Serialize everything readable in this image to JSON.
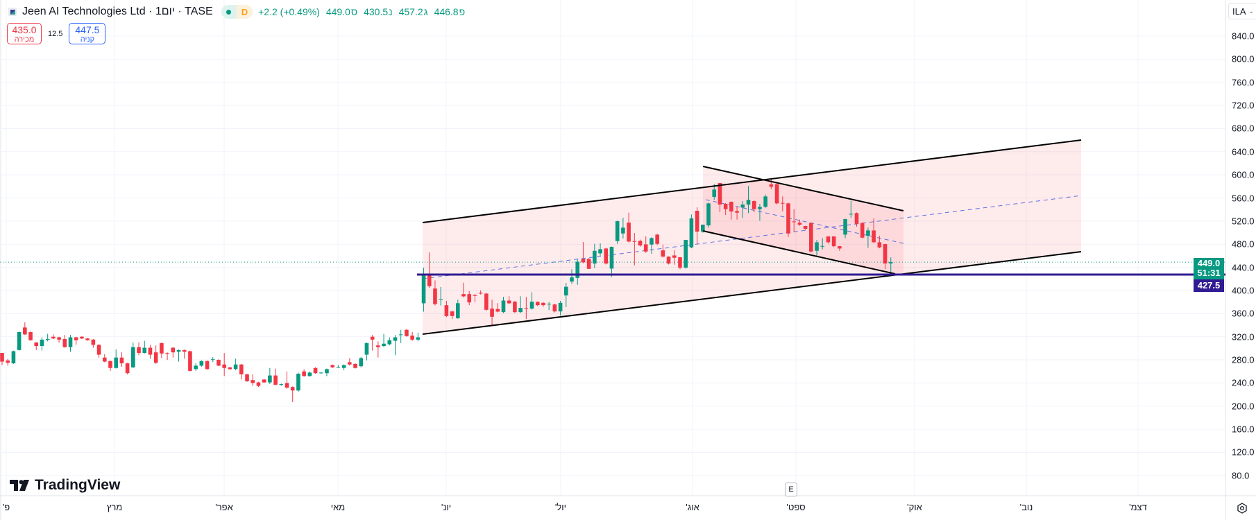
{
  "header": {
    "title": "Jeen AI Technologies Ltd · 1יום · TASE",
    "delay_badge": "D",
    "change": "+2.2 (+0.49%)",
    "ohlc": [
      {
        "label": "ס",
        "value": "449.0"
      },
      {
        "label": "נ",
        "value": "430.5"
      },
      {
        "label": "ג",
        "value": "457.2"
      },
      {
        "label": "פ",
        "value": "446.8"
      }
    ]
  },
  "trade": {
    "sell_price": "435.0",
    "sell_label": "מכירה",
    "spread": "12.5",
    "buy_price": "447.5",
    "buy_label": "קניה"
  },
  "currency": "ILA",
  "price_axis": [
    "840.0",
    "800.0",
    "760.0",
    "720.0",
    "680.0",
    "640.0",
    "600.0",
    "560.0",
    "520.0",
    "480.0",
    "440.0",
    "400.0",
    "360.0",
    "320.0",
    "280.0",
    "240.0",
    "200.0",
    "160.0",
    "120.0",
    "80.0"
  ],
  "time_axis": [
    "'פ",
    "מרץ",
    "'אפר",
    "מאי",
    "'יונ",
    "'יול",
    "'אוג",
    "'ספט",
    "'אוק",
    "'נוב",
    "'דצמ"
  ],
  "last_price": {
    "price": "449.0",
    "countdown": "51:31"
  },
  "horizontal_line": {
    "price": "427.5"
  },
  "logo": "TradingView",
  "e_button": "E",
  "colors": {
    "up": "#089981",
    "down": "#f23645",
    "hline": "#311b92",
    "channel_fill": "rgba(242,54,69,0.1)",
    "midline": "#5c6fe0"
  },
  "chart_data": {
    "type": "candlestick",
    "ylim": [
      80,
      840
    ],
    "candles_ohlc": [
      [
        292,
        292,
        271,
        277
      ],
      [
        279,
        282,
        270,
        275
      ],
      [
        274,
        296,
        273,
        295
      ],
      [
        297,
        329,
        296,
        328
      ],
      [
        336,
        345,
        323,
        324
      ],
      [
        328,
        329,
        313,
        314
      ],
      [
        310,
        311,
        297,
        304
      ],
      [
        304,
        319,
        296,
        315
      ],
      [
        315,
        325,
        312,
        316
      ],
      [
        320,
        324,
        316,
        317
      ],
      [
        319,
        320,
        310,
        315
      ],
      [
        316,
        323,
        301,
        302
      ],
      [
        302,
        323,
        294,
        319
      ],
      [
        319,
        320,
        306,
        314
      ],
      [
        320,
        321,
        316,
        317
      ],
      [
        317,
        318,
        313,
        314
      ],
      [
        315,
        316,
        301,
        306
      ],
      [
        306,
        307,
        284,
        289
      ],
      [
        284,
        290,
        276,
        277
      ],
      [
        278,
        279,
        261,
        266
      ],
      [
        266,
        298,
        265,
        284
      ],
      [
        284,
        293,
        268,
        274
      ],
      [
        274,
        275,
        255,
        257
      ],
      [
        267,
        310,
        266,
        302
      ],
      [
        302,
        310,
        288,
        292
      ],
      [
        292,
        313,
        291,
        301
      ],
      [
        301,
        306,
        282,
        289
      ],
      [
        293,
        305,
        273,
        275
      ],
      [
        309,
        310,
        283,
        291
      ],
      [
        292,
        293,
        280,
        291
      ],
      [
        301,
        302,
        284,
        293
      ],
      [
        294,
        298,
        277,
        297
      ],
      [
        297,
        298,
        282,
        294
      ],
      [
        295,
        296,
        260,
        261
      ],
      [
        264,
        274,
        261,
        270
      ],
      [
        270,
        279,
        268,
        278
      ],
      [
        278,
        279,
        263,
        264
      ],
      [
        280,
        285,
        276,
        281
      ],
      [
        280,
        281,
        269,
        270
      ],
      [
        272,
        292,
        252,
        266
      ],
      [
        267,
        268,
        262,
        264
      ],
      [
        264,
        282,
        262,
        272
      ],
      [
        272,
        273,
        246,
        255
      ],
      [
        255,
        256,
        242,
        243
      ],
      [
        245,
        255,
        235,
        240
      ],
      [
        241,
        242,
        233,
        235
      ],
      [
        246,
        247,
        240,
        241
      ],
      [
        241,
        266,
        238,
        253
      ],
      [
        253,
        265,
        236,
        237
      ],
      [
        237,
        239,
        235,
        238
      ],
      [
        240,
        260,
        230,
        232
      ],
      [
        233,
        234,
        207,
        227
      ],
      [
        227,
        258,
        225,
        256
      ],
      [
        260,
        264,
        251,
        252
      ],
      [
        252,
        260,
        251,
        258
      ],
      [
        266,
        267,
        256,
        257
      ],
      [
        257,
        259,
        256,
        258
      ],
      [
        257,
        265,
        252,
        264
      ],
      [
        271,
        272,
        266,
        267
      ],
      [
        268,
        271,
        266,
        268
      ],
      [
        266,
        272,
        262,
        271
      ],
      [
        276,
        283,
        270,
        272
      ],
      [
        273,
        274,
        265,
        266
      ],
      [
        269,
        285,
        267,
        283
      ],
      [
        289,
        310,
        279,
        309
      ],
      [
        320,
        323,
        296,
        315
      ],
      [
        305,
        312,
        284,
        302
      ],
      [
        304,
        325,
        302,
        308
      ],
      [
        307,
        319,
        305,
        314
      ],
      [
        313,
        323,
        288,
        319
      ],
      [
        323,
        332,
        309,
        324
      ],
      [
        332,
        333,
        320,
        321
      ],
      [
        322,
        328,
        313,
        315
      ],
      [
        315,
        327,
        312,
        319
      ],
      [
        377.8,
        439.4,
        363.4,
        426.6
      ],
      [
        425.8,
        465.8,
        404.6,
        407.4
      ],
      [
        403.4,
        417.4,
        374,
        376.6
      ],
      [
        384.6,
        406,
        374,
        385
      ],
      [
        374.6,
        382,
        354,
        355.8
      ],
      [
        363.8,
        365,
        350.6,
        355.8
      ],
      [
        352,
        384,
        351,
        378
      ],
      [
        393.8,
        413.4,
        388,
        389.8
      ],
      [
        393.8,
        399,
        374.6,
        379.4
      ],
      [
        392,
        394,
        380,
        390.6
      ],
      [
        396,
        400,
        393,
        394.6
      ],
      [
        394.6,
        396,
        365,
        366.6
      ],
      [
        368.6,
        384,
        340.6,
        354.6
      ],
      [
        368,
        378,
        362,
        363.4
      ],
      [
        362.6,
        389,
        361,
        382.6
      ],
      [
        382.6,
        390,
        376,
        377.8
      ],
      [
        380.6,
        382,
        361,
        362.6
      ],
      [
        362.6,
        390,
        361,
        369.8
      ],
      [
        369.8,
        389,
        350.6,
        369.4
      ],
      [
        368.6,
        397,
        367,
        380.6
      ],
      [
        380.2,
        381,
        373,
        374.6
      ],
      [
        378.6,
        380,
        372,
        374.6
      ],
      [
        376,
        380,
        366,
        377
      ],
      [
        375.8,
        377,
        362,
        363.8
      ],
      [
        363.8,
        382,
        356.6,
        378.6
      ],
      [
        391.4,
        413,
        371.4,
        406.4
      ],
      [
        415.4,
        436.6,
        411.4,
        422.6
      ],
      [
        421.8,
        454,
        409.8,
        449.8
      ],
      [
        454.6,
        483.8,
        447,
        448.6
      ],
      [
        454.6,
        456,
        437,
        437.4
      ],
      [
        446.6,
        480.6,
        438.6,
        468.6
      ],
      [
        464.2,
        481.4,
        460,
        471.4
      ],
      [
        472.6,
        474,
        445,
        446.6
      ],
      [
        437.8,
        476,
        423.4,
        475.4
      ],
      [
        485.4,
        521,
        480.6,
        519.8
      ],
      [
        498.6,
        525.8,
        489.8,
        508.6
      ],
      [
        517.4,
        534.6,
        483,
        484.6
      ],
      [
        485.4,
        499.4,
        443.4,
        485
      ],
      [
        485.8,
        488,
        476,
        477.8
      ],
      [
        479.8,
        493.4,
        465,
        467.4
      ],
      [
        479.4,
        492,
        463.4,
        490.6
      ],
      [
        496.6,
        498,
        478,
        480.6
      ],
      [
        469.4,
        479.4,
        457,
        458.6
      ],
      [
        458.6,
        459,
        445,
        446.6
      ],
      [
        460.6,
        469.4,
        444.6,
        456.6
      ],
      [
        457.4,
        458,
        436.6,
        439.4
      ],
      [
        439.4,
        487.4,
        438,
        487.4
      ],
      [
        474.6,
        531.4,
        473,
        524.6
      ],
      [
        537.8,
        543.8,
        480.6,
        501.8
      ],
      [
        501.8,
        514,
        500,
        513.8
      ],
      [
        512.6,
        552,
        508.6,
        550.6
      ],
      [
        561.8,
        584.6,
        556.6,
        574.6
      ],
      [
        585.8,
        586,
        535.4,
        548.6
      ],
      [
        549.8,
        551,
        530.6,
        540.6
      ],
      [
        553.4,
        554,
        522.6,
        536.6
      ],
      [
        537.4,
        544.6,
        522.6,
        534.6
      ],
      [
        543.4,
        554.6,
        525.4,
        548.6
      ],
      [
        548.6,
        580.6,
        533.8,
        556.6
      ],
      [
        554.6,
        556,
        535.4,
        540.6
      ],
      [
        540.6,
        549.8,
        520.6,
        544.6
      ],
      [
        544.6,
        565.8,
        543,
        562.6
      ],
      [
        583.4,
        592.6,
        575.4,
        579.4
      ],
      [
        583.8,
        585,
        549,
        550.6
      ],
      [
        551.4,
        562.6,
        536.6,
        551
      ],
      [
        550.6,
        552,
        492.6,
        498.6
      ],
      [
        519.4,
        540.6,
        500.6,
        518.4
      ],
      [
        517.4,
        522.6,
        512,
        513.8
      ],
      [
        511.4,
        512,
        505,
        506.6
      ],
      [
        516.6,
        518,
        465.8,
        467.4
      ],
      [
        468.6,
        487.4,
        458.6,
        483.4
      ],
      [
        476,
        490.6,
        471.4,
        477
      ],
      [
        493.4,
        494,
        481,
        483.4
      ],
      [
        493.4,
        494,
        475,
        476.6
      ],
      [
        476.6,
        477,
        468.6,
        472.6
      ],
      [
        496.6,
        524,
        490.6,
        523.4
      ],
      [
        531.6,
        554.6,
        525.4,
        532.6
      ],
      [
        533.8,
        535,
        510.6,
        515.4
      ],
      [
        516.6,
        518,
        490,
        491.4
      ],
      [
        494.6,
        508.6,
        473.8,
        503.8
      ],
      [
        503.8,
        524.6,
        482,
        483.4
      ],
      [
        483.4,
        494.6,
        473,
        474.6
      ],
      [
        480.2,
        481,
        436.6,
        446.6
      ],
      [
        446.8,
        457.2,
        430.5,
        449.0
      ]
    ]
  }
}
